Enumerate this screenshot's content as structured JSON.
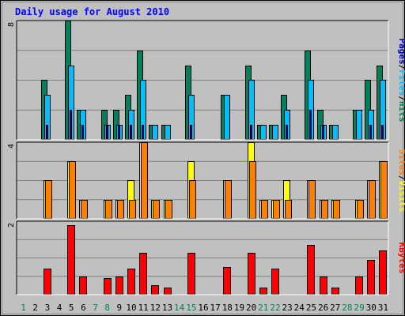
{
  "chart_data": [
    {
      "type": "bar",
      "title": "Daily usage for August 2010",
      "panel": "pages-files-hits",
      "categories": [
        "1",
        "2",
        "3",
        "4",
        "5",
        "6",
        "7",
        "8",
        "9",
        "10",
        "11",
        "12",
        "13",
        "14",
        "15",
        "16",
        "17",
        "18",
        "19",
        "20",
        "21",
        "22",
        "23",
        "24",
        "25",
        "26",
        "27",
        "28",
        "29",
        "30",
        "31"
      ],
      "ylim": [
        0,
        8
      ],
      "tick_label": "8",
      "axis_labels": [
        "Pages",
        "Files",
        "Hits"
      ],
      "series": [
        {
          "name": "Hits",
          "color": "#00805c",
          "values": [
            0,
            0,
            4,
            0,
            8,
            2,
            0,
            2,
            2,
            3,
            6,
            1,
            1,
            0,
            5,
            0,
            0,
            3,
            0,
            5,
            1,
            1,
            3,
            0,
            6,
            2,
            1,
            0,
            2,
            4,
            5
          ]
        },
        {
          "name": "Files",
          "color": "#00bfff",
          "values": [
            0,
            0,
            3,
            0,
            5,
            2,
            0,
            1,
            1,
            2,
            4,
            1,
            1,
            0,
            3,
            0,
            0,
            3,
            0,
            4,
            1,
            1,
            2,
            0,
            4,
            1,
            1,
            0,
            2,
            2,
            4
          ]
        },
        {
          "name": "Pages",
          "color": "#0000c0",
          "values": [
            0,
            0,
            1,
            0,
            2,
            1,
            0,
            1,
            1,
            1,
            1,
            0,
            0,
            0,
            1,
            0,
            0,
            0,
            0,
            1,
            0,
            0,
            1,
            0,
            2,
            1,
            0,
            0,
            0,
            1,
            1
          ]
        }
      ]
    },
    {
      "type": "bar",
      "panel": "sites-visits",
      "categories": [
        "1",
        "2",
        "3",
        "4",
        "5",
        "6",
        "7",
        "8",
        "9",
        "10",
        "11",
        "12",
        "13",
        "14",
        "15",
        "16",
        "17",
        "18",
        "19",
        "20",
        "21",
        "22",
        "23",
        "24",
        "25",
        "26",
        "27",
        "28",
        "29",
        "30",
        "31"
      ],
      "ylim": [
        0,
        4
      ],
      "tick_label": "4",
      "axis_labels": [
        "Sites",
        "Visits"
      ],
      "series": [
        {
          "name": "Visits",
          "color": "#ffff00",
          "values": [
            0,
            0,
            2,
            0,
            3,
            1,
            0,
            1,
            1,
            2,
            4,
            1,
            1,
            0,
            3,
            0,
            0,
            2,
            0,
            4,
            1,
            1,
            2,
            0,
            2,
            1,
            1,
            0,
            1,
            2,
            3
          ]
        },
        {
          "name": "Sites",
          "color": "#ff8000",
          "values": [
            0,
            0,
            2,
            0,
            3,
            1,
            0,
            1,
            1,
            1,
            4,
            1,
            1,
            0,
            2,
            0,
            0,
            2,
            0,
            3,
            1,
            1,
            1,
            0,
            2,
            1,
            1,
            0,
            1,
            2,
            3
          ]
        }
      ]
    },
    {
      "type": "bar",
      "panel": "kbytes",
      "categories": [
        "1",
        "2",
        "3",
        "4",
        "5",
        "6",
        "7",
        "8",
        "9",
        "10",
        "11",
        "12",
        "13",
        "14",
        "15",
        "16",
        "17",
        "18",
        "19",
        "20",
        "21",
        "22",
        "23",
        "24",
        "25",
        "26",
        "27",
        "28",
        "29",
        "30",
        "31"
      ],
      "ylim": [
        0,
        2
      ],
      "tick_label": "2",
      "axis_labels": [
        "KBytes"
      ],
      "series": [
        {
          "name": "KBytes",
          "color": "#ff0000",
          "values": [
            0,
            0,
            0.7,
            0,
            1.9,
            0.5,
            0,
            0.45,
            0.5,
            0.7,
            1.15,
            0.25,
            0.2,
            0,
            1.15,
            0,
            0,
            0.75,
            0,
            1.15,
            0.2,
            0.7,
            0,
            0,
            1.35,
            0.5,
            0.2,
            0,
            0.5,
            0.95,
            1.2
          ]
        }
      ]
    }
  ],
  "weekend_days": [
    "1",
    "7",
    "8",
    "14",
    "15",
    "21",
    "22",
    "28",
    "29"
  ],
  "colors": {
    "background": "#c0c0c0",
    "plot_area": "#c0c0c0",
    "gridline": "#808080",
    "border": "#000000",
    "title": "#0000ff",
    "weekday_label": "#000000",
    "weekend_label": "#00805c",
    "label_pages": "#0000c0",
    "label_files": "#00bfff",
    "label_hits": "#00805c",
    "label_sites": "#ff8000",
    "label_visits": "#ffff00",
    "label_kbytes": "#ff0000",
    "slash": "#000000"
  }
}
